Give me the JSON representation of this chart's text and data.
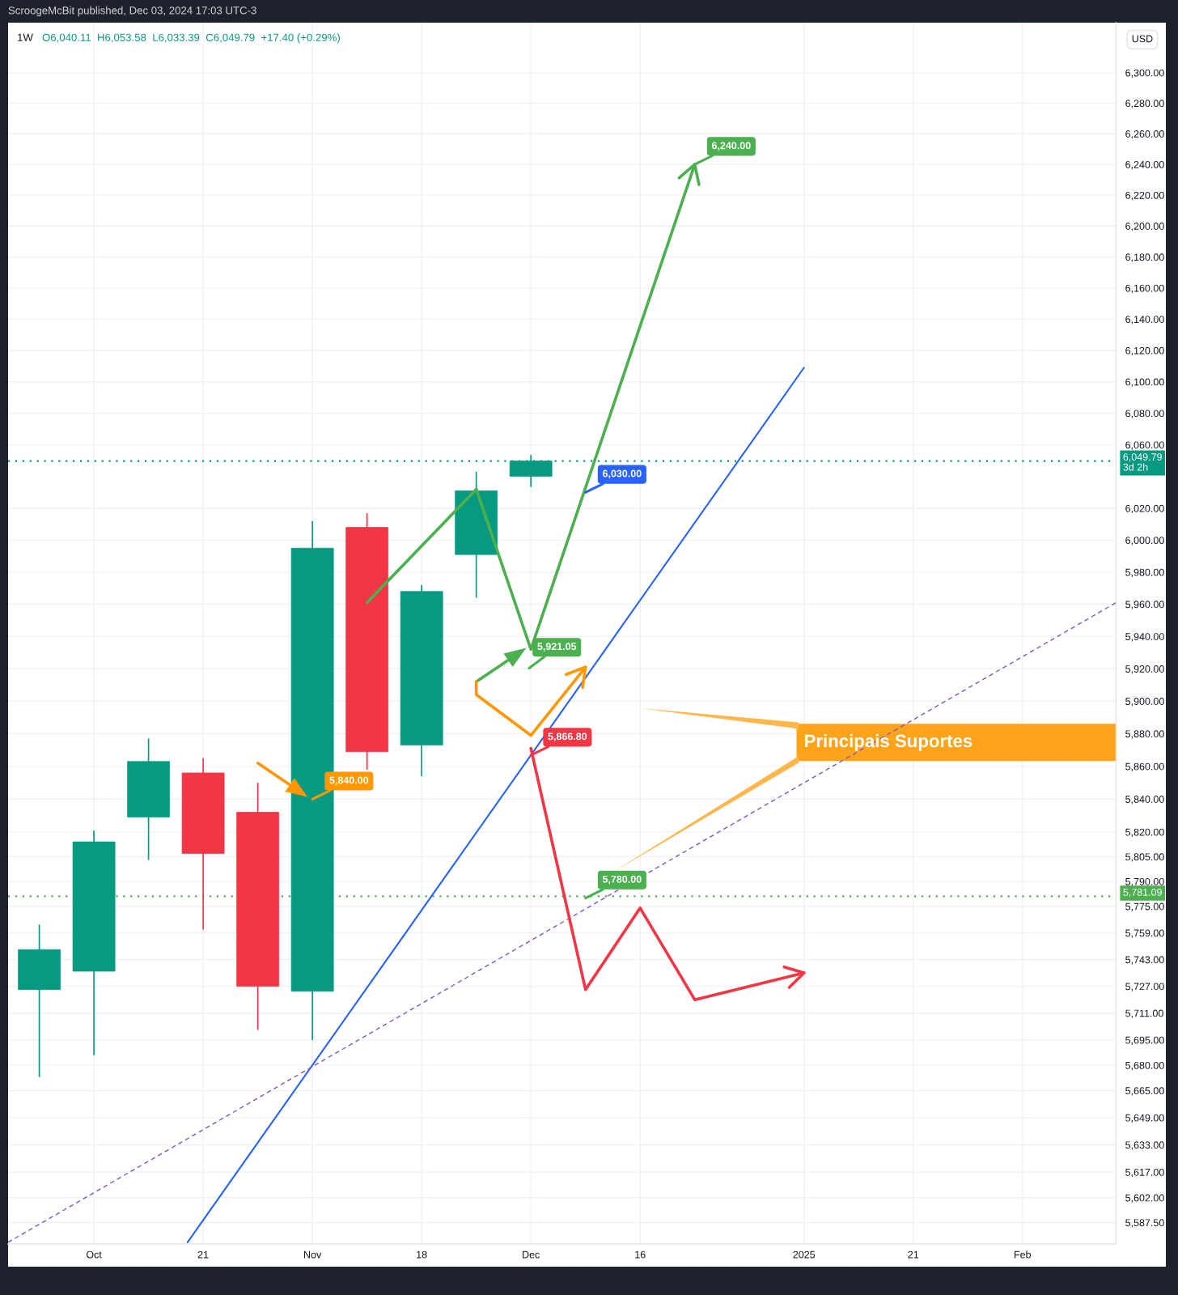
{
  "chart_data": {
    "type": "candlestick",
    "title": "1W",
    "subtitle": "O6,040.11  H6,053.58  L6,033.39  C6,049.79  +17.40 (+0.29%)",
    "ylabel": "USD",
    "x": [
      "2024-09-30",
      "2024-10-07",
      "2024-10-14",
      "2024-10-21",
      "2024-10-28",
      "2024-11-04",
      "2024-11-11",
      "2024-11-18",
      "2024-11-25",
      "2024-12-02"
    ],
    "ohlc": [
      [
        5725,
        5764,
        5673,
        5749
      ],
      [
        5736,
        5821,
        5686,
        5814
      ],
      [
        5829,
        5877,
        5803,
        5863
      ],
      [
        5856,
        5865,
        5761,
        5807
      ],
      [
        5832,
        5850,
        5701,
        5727
      ],
      [
        5724,
        6012,
        5695,
        5995
      ],
      [
        6008,
        6017,
        5858,
        5869
      ],
      [
        5873,
        5972,
        5854,
        5968
      ],
      [
        5991,
        6043,
        5964,
        6031
      ],
      [
        6040.11,
        6053.58,
        6033.39,
        6049.79
      ]
    ],
    "colors": [
      "#089981",
      "#089981",
      "#089981",
      "#f23645",
      "#f23645",
      "#089981",
      "#f23645",
      "#089981",
      "#089981",
      "#089981"
    ],
    "series": [
      {
        "type": "line",
        "x": [
          "2024-10-19",
          "2025-01-06"
        ],
        "values": [
          5576,
          6109
        ],
        "color": "#2962ff"
      },
      {
        "type": "line",
        "x": [
          "2024-09-26",
          "2025-02-15"
        ],
        "values": [
          5576,
          5961
        ],
        "color": "#7e57c2",
        "line_style": "dashed"
      },
      {
        "type": "line",
        "x": [
          "2024-11-11",
          "2024-11-25",
          "2024-12-02",
          "2024-12-23"
        ],
        "values": [
          5961,
          6032,
          5932,
          6240
        ],
        "color": "#4caf50"
      },
      {
        "type": "line",
        "x": [
          "2024-11-25",
          "2024-11-29"
        ],
        "values": [
          5912,
          5925
        ],
        "color": "#4caf50"
      },
      {
        "type": "line",
        "x": [
          "2024-11-25",
          "2024-11-25",
          "2024-12-02",
          "2024-12-09"
        ],
        "values": [
          5912,
          5904,
          5879,
          5921
        ],
        "color": "#ff9800"
      },
      {
        "type": "line",
        "x": [
          "2024-10-28",
          "2024-11-01"
        ],
        "values": [
          5862,
          5849
        ],
        "color": "#ff9800"
      },
      {
        "type": "line",
        "x": [
          "2024-12-02",
          "2024-12-09",
          "2024-12-16",
          "2024-12-23",
          "2025-01-06"
        ],
        "values": [
          5871,
          5725,
          5774,
          5719,
          5735
        ],
        "color": "#f23645"
      }
    ],
    "xlim": [
      "2024-09-26",
      "2025-02-15"
    ],
    "ylim": [
      5575,
      6333
    ],
    "log": "y",
    "grid": true,
    "xticks": [
      {
        "value": "2024-10-07",
        "label": "Oct"
      },
      {
        "value": "2024-10-21",
        "label": "21"
      },
      {
        "value": "2024-11-04",
        "label": "Nov"
      },
      {
        "value": "2024-11-18",
        "label": "18"
      },
      {
        "value": "2024-12-02",
        "label": "Dec"
      },
      {
        "value": "2024-12-16",
        "label": "16"
      },
      {
        "value": "2025-01-06",
        "label": "2025"
      },
      {
        "value": "2025-01-20",
        "label": "21"
      },
      {
        "value": "2025-02-03",
        "label": "Feb"
      }
    ],
    "yticks": [
      {
        "value": 6300,
        "label": "6,300.00"
      },
      {
        "value": 6280,
        "label": "6,280.00"
      },
      {
        "value": 6260,
        "label": "6,260.00"
      },
      {
        "value": 6240,
        "label": "6,240.00"
      },
      {
        "value": 6220,
        "label": "6,220.00"
      },
      {
        "value": 6200,
        "label": "6,200.00"
      },
      {
        "value": 6180,
        "label": "6,180.00"
      },
      {
        "value": 6160,
        "label": "6,160.00"
      },
      {
        "value": 6140,
        "label": "6,140.00"
      },
      {
        "value": 6120,
        "label": "6,120.00"
      },
      {
        "value": 6100,
        "label": "6,100.00"
      },
      {
        "value": 6080,
        "label": "6,080.00"
      },
      {
        "value": 6060,
        "label": "6,060.00"
      },
      {
        "value": 6020,
        "label": "6,020.00"
      },
      {
        "value": 6000,
        "label": "6,000.00"
      },
      {
        "value": 5980,
        "label": "5,980.00"
      },
      {
        "value": 5960,
        "label": "5,960.00"
      },
      {
        "value": 5940,
        "label": "5,940.00"
      },
      {
        "value": 5920,
        "label": "5,920.00"
      },
      {
        "value": 5900,
        "label": "5,900.00"
      },
      {
        "value": 5880,
        "label": "5,880.00"
      },
      {
        "value": 5860,
        "label": "5,860.00"
      },
      {
        "value": 5840,
        "label": "5,840.00"
      },
      {
        "value": 5820,
        "label": "5,820.00"
      },
      {
        "value": 5805,
        "label": "5,805.00"
      },
      {
        "value": 5790,
        "label": "5,790.00"
      },
      {
        "value": 5775,
        "label": "5,775.00"
      },
      {
        "value": 5759,
        "label": "5,759.00"
      },
      {
        "value": 5743,
        "label": "5,743.00"
      },
      {
        "value": 5727,
        "label": "5,727.00"
      },
      {
        "value": 5711,
        "label": "5,711.00"
      },
      {
        "value": 5695,
        "label": "5,695.00"
      },
      {
        "value": 5680,
        "label": "5,680.00"
      },
      {
        "value": 5665,
        "label": "5,665.00"
      },
      {
        "value": 5649,
        "label": "5,649.00"
      },
      {
        "value": 5633,
        "label": "5,633.00"
      },
      {
        "value": 5617,
        "label": "5,617.00"
      },
      {
        "value": 5602,
        "label": "5,602.00"
      },
      {
        "value": 5587.5,
        "label": "5,587.50"
      }
    ],
    "ref_lines": [
      {
        "axis": "y",
        "value": 6049.79,
        "label": "6,049.79\n3d 2h",
        "color": "#089981",
        "line_style": "dotted"
      },
      {
        "axis": "y",
        "value": 5781.09,
        "label": "5,781.09",
        "color": "#4caf50",
        "line_style": "dotted"
      }
    ],
    "annotations": [
      "ScroogeMcBit published, Dec 03, 2024 17:03 UTC-3",
      "Principais Suportes",
      "5,921.05",
      {
        "text": "5,840.00",
        "x": "2024-11-04",
        "y": 5840
      },
      {
        "text": "5,866.80",
        "x": "2024-12-02",
        "y": 5866.8
      },
      {
        "text": "6,030.00",
        "x": "2024-12-09",
        "y": 6030
      },
      {
        "text": "6,240.00",
        "x": "2024-12-23",
        "y": 6240
      },
      {
        "text": "5,780.00",
        "x": "2024-12-09",
        "y": 5780
      }
    ]
  }
}
